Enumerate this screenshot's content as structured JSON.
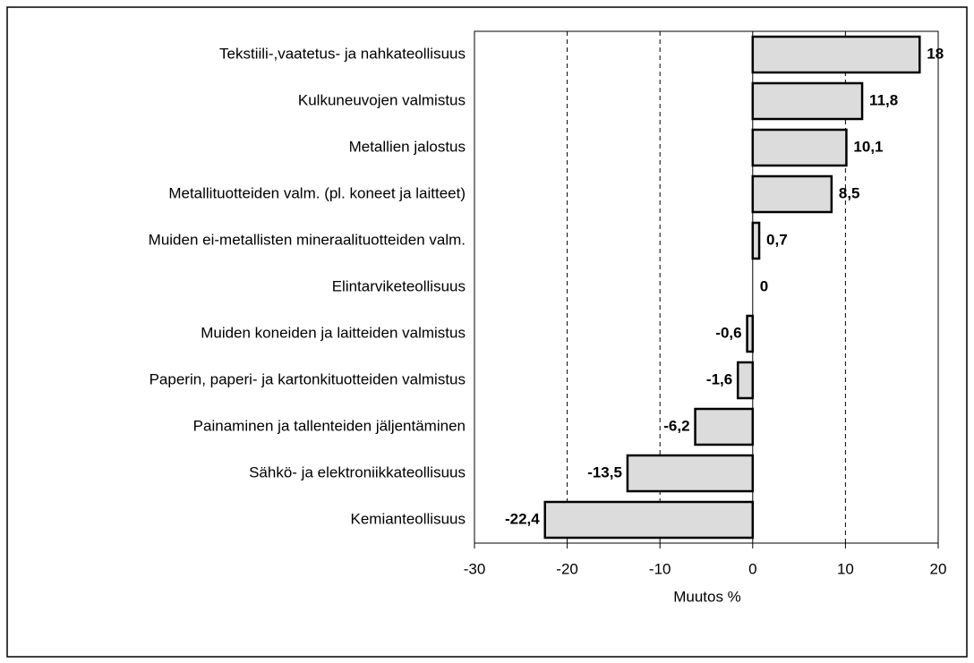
{
  "chart_data": {
    "type": "bar",
    "orientation": "horizontal",
    "categories": [
      "Tekstiili-,vaatetus- ja nahkateollisuus",
      "Kulkuneuvojen valmistus",
      "Metallien jalostus",
      "Metallituotteiden valm. (pl. koneet ja laitteet)",
      "Muiden ei-metallisten mineraalituotteiden valm.",
      "Elintarviketeollisuus",
      "Muiden koneiden ja laitteiden valmistus",
      "Paperin, paperi- ja kartonkituotteiden valmistus",
      "Painaminen ja tallenteiden jäljentäminen",
      "Sähkö- ja elektroniikkateollisuus",
      "Kemianteollisuus"
    ],
    "values": [
      18,
      11.8,
      10.1,
      8.5,
      0.7,
      0,
      -0.6,
      -1.6,
      -6.2,
      -13.5,
      -22.4
    ],
    "value_labels": [
      "18",
      "11,8",
      "10,1",
      "8,5",
      "0,7",
      "0",
      "-0,6",
      "-1,6",
      "-6,2",
      "-13,5",
      "-22,4"
    ],
    "color": "#dcdcdc",
    "xlabel": "Muutos %",
    "xlim": [
      -30,
      20
    ],
    "xticks": [
      -30,
      -20,
      -10,
      0,
      10,
      20
    ],
    "grid": true
  }
}
